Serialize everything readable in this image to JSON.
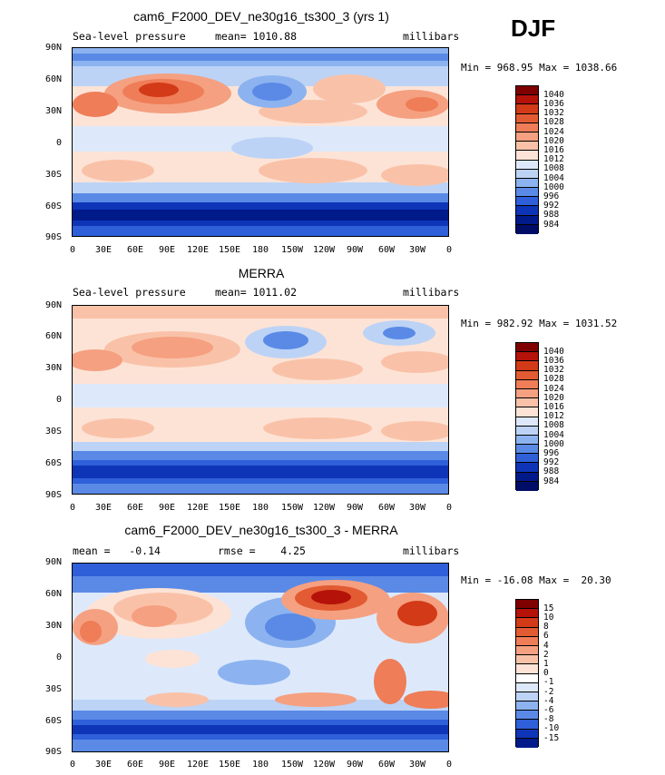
{
  "season": "DJF",
  "panels": [
    {
      "title": "cam6_F2000_DEV_ne30g16_ts300_3 (yrs 1)",
      "left_label": "Sea-level pressure",
      "center_label": "mean= 1010.88",
      "units": "millibars",
      "minmax": "Min = 968.95 Max = 1038.66",
      "lat_ticks": [
        "90N",
        "60N",
        "30N",
        "0",
        "30S",
        "60S",
        "90S"
      ],
      "lon_ticks": [
        "0",
        "30E",
        "60E",
        "90E",
        "120E",
        "150E",
        "180",
        "150W",
        "120W",
        "90W",
        "60W",
        "30W",
        "0"
      ],
      "legend_labels": [
        "1040",
        "1036",
        "1032",
        "1028",
        "1024",
        "1020",
        "1016",
        "1012",
        "1008",
        "1004",
        "1000",
        "996",
        "992",
        "988",
        "984"
      ]
    },
    {
      "title": "MERRA",
      "left_label": "Sea-level pressure",
      "center_label": "mean= 1011.02",
      "units": "millibars",
      "minmax": "Min = 982.92 Max = 1031.52",
      "lat_ticks": [
        "90N",
        "60N",
        "30N",
        "0",
        "30S",
        "60S",
        "90S"
      ],
      "lon_ticks": [
        "0",
        "30E",
        "60E",
        "90E",
        "120E",
        "150E",
        "180",
        "150W",
        "120W",
        "90W",
        "60W",
        "30W",
        "0"
      ],
      "legend_labels": [
        "1040",
        "1036",
        "1032",
        "1028",
        "1024",
        "1020",
        "1016",
        "1012",
        "1008",
        "1004",
        "1000",
        "996",
        "992",
        "988",
        "984"
      ]
    },
    {
      "title": "cam6_F2000_DEV_ne30g16_ts300_3 - MERRA",
      "left_label": "mean =   -0.14",
      "center_label": "rmse =    4.25",
      "units": "millibars",
      "minmax": "Min = -16.08 Max =  20.30",
      "lat_ticks": [
        "90N",
        "60N",
        "30N",
        "0",
        "30S",
        "60S",
        "90S"
      ],
      "lon_ticks": [
        "0",
        "30E",
        "60E",
        "90E",
        "120E",
        "150E",
        "180",
        "150W",
        "120W",
        "90W",
        "60W",
        "30W",
        "0"
      ],
      "legend_labels": [
        "15",
        "10",
        "8",
        "6",
        "4",
        "2",
        "1",
        "0",
        "-1",
        "-2",
        "-4",
        "-6",
        "-8",
        "-10",
        "-15"
      ]
    }
  ],
  "colors": {
    "abs_scale": [
      "#7f0000",
      "#b5120a",
      "#d33a18",
      "#e25b33",
      "#ee7d58",
      "#f5a080",
      "#f9c2a8",
      "#fde3d6",
      "#dde9fb",
      "#bcd3f6",
      "#8cb3ef",
      "#5a8ae6",
      "#2f60da",
      "#0e35b8",
      "#001a8a",
      "#000d66"
    ],
    "diff_scale": [
      "#7f0000",
      "#b5120a",
      "#d33a18",
      "#e25b33",
      "#ee7d58",
      "#f5a080",
      "#f9c2a8",
      "#fde3d6",
      "#ffffff",
      "#dde9fb",
      "#bcd3f6",
      "#8cb3ef",
      "#5a8ae6",
      "#2f60da",
      "#0e35b8",
      "#001a8a"
    ]
  }
}
